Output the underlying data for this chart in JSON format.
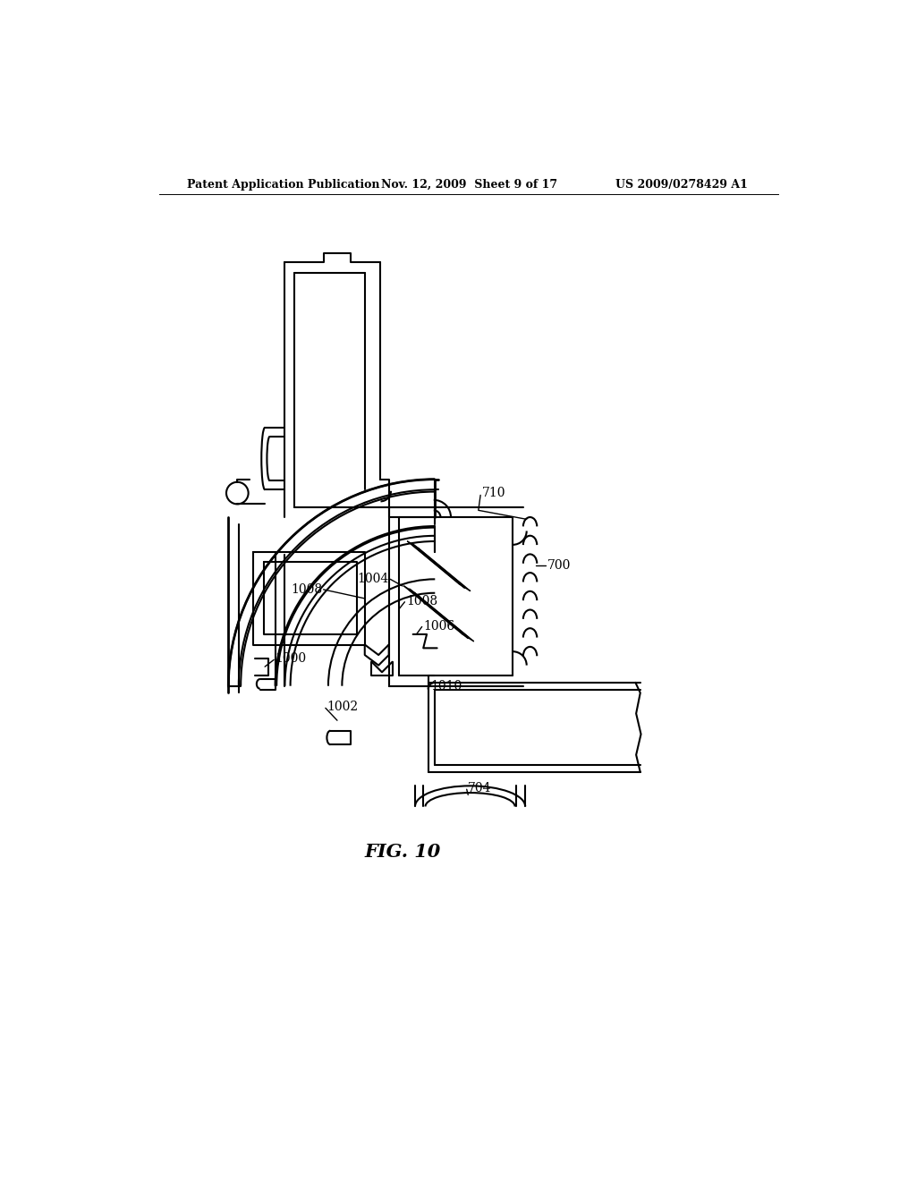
{
  "header_left": "Patent Application Publication",
  "header_mid": "Nov. 12, 2009  Sheet 9 of 17",
  "header_right": "US 2009/0278429 A1",
  "fig_label": "FIG. 10",
  "bg_color": "#ffffff",
  "line_color": "#000000",
  "lw_thin": 1.0,
  "lw_med": 1.5,
  "lw_thick": 2.0
}
